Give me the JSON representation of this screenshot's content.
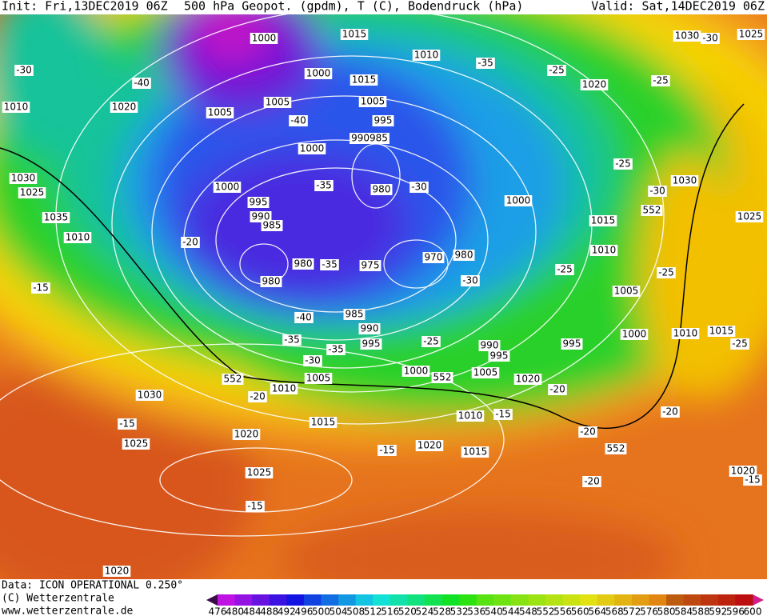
{
  "header": {
    "init": "Init: Fri,13DEC2019 06Z",
    "title": "500 hPa Geopot. (gpdm), T (C), Bodendruck (hPa)",
    "valid": "Valid: Sat,14DEC2019 06Z"
  },
  "labels": [
    "1000",
    "1015",
    "1010",
    "1000",
    "1010",
    "1015",
    "1005",
    "1020",
    "1005",
    "1005",
    "995",
    "990985",
    "1000",
    "980",
    "995",
    "1000",
    "990",
    "985",
    "980",
    "980",
    "975",
    "970",
    "980",
    "985",
    "990",
    "995",
    "1000",
    "1005",
    "1010",
    "1015",
    "1030",
    "1025",
    "1020",
    "1025",
    "1030",
    "1035",
    "1010",
    "1020",
    "1025",
    "1030",
    "1015",
    "1010",
    "1005",
    "1000",
    "1010",
    "1015",
    "1005",
    "1010",
    "1015",
    "1020",
    "1020",
    "1025",
    "1020",
    "1030",
    "1025",
    "1020",
    "995",
    "990",
    "995",
    "1000",
    "-30",
    "-40",
    "-35",
    "-40",
    "-35",
    "-30",
    "-25",
    "-35",
    "-30",
    "-40",
    "-35",
    "-35",
    "-30",
    "-25",
    "-20",
    "-25",
    "-30",
    "-25",
    "-25",
    "-30",
    "-25",
    "-20",
    "-15",
    "-15",
    "-15",
    "-15",
    "-20",
    "-20",
    "-25",
    "-20",
    "-15",
    "-15",
    "-20",
    "552",
    "552",
    "552",
    "552"
  ],
  "footer": {
    "data": "Data: ICON OPERATIONAL 0.250°",
    "copyright": "(C) Wetterzentrale",
    "url": "www.wetterzentrale.de"
  },
  "legend": {
    "values": [
      476,
      480,
      484,
      488,
      492,
      496,
      500,
      504,
      508,
      512,
      516,
      520,
      524,
      528,
      532,
      536,
      540,
      544,
      548,
      552,
      556,
      560,
      564,
      568,
      572,
      576,
      580,
      584,
      588,
      592,
      596,
      600
    ]
  }
}
